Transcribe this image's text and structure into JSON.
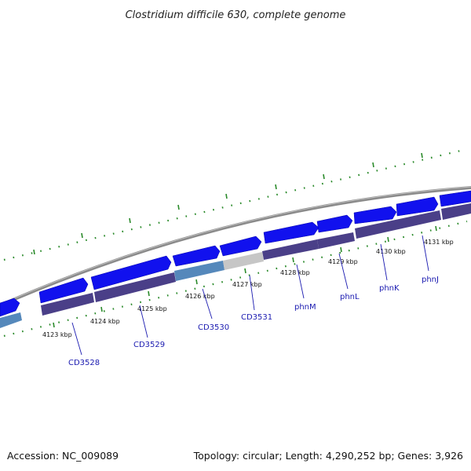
{
  "title": "Clostridium difficile 630, complete genome",
  "footer": {
    "accession": "Accession: NC_009089",
    "stats": "Topology: circular; Length: 4,290,252 bp; Genes: 3,926"
  },
  "colors": {
    "backbone": "#8a8a8a",
    "tick": "#2a8a2a",
    "gene_forward": "#1111ee",
    "gene_forward_light": "#5588bb",
    "gene_pseudo": "#c6c6c6",
    "gene_reverse": "#4a3f88",
    "label": "#1a1ab0"
  },
  "scale_labels": [
    "4123 kbp",
    "4124 kbp",
    "4125 kbp",
    "4126 kbp",
    "4127 kbp",
    "4128 kbp",
    "4129 kbp",
    "4130 kbp",
    "4131 kbp"
  ],
  "gene_labels": [
    "CD3528",
    "CD3529",
    "CD3530",
    "CD3531",
    "phnM",
    "phnL",
    "phnK",
    "phnJ"
  ]
}
